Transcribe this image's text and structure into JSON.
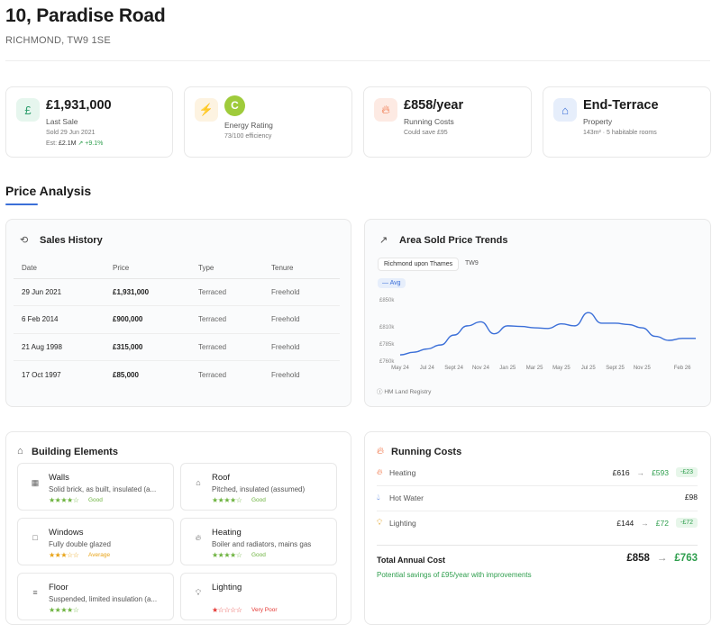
{
  "header": {
    "title": "10, Paradise Road",
    "subtitle": "RICHMOND, TW9 1SE"
  },
  "stats": [
    {
      "icon": "pound-icon",
      "value": "£1,931,000",
      "label": "Last Sale",
      "line1": "Sold 29 Jun 2021",
      "line2_prefix": "Est:",
      "line2_value": "£2.1M",
      "line2_change": "+9.1%"
    },
    {
      "icon": "lightning-icon",
      "badge": "C",
      "label": "Energy Rating",
      "line1": "73/100 efficiency"
    },
    {
      "icon": "flame-icon",
      "value": "£858/year",
      "label": "Running Costs",
      "line1": "Could save £95"
    },
    {
      "icon": "house-icon",
      "value": "End-Terrace",
      "label": "Property",
      "line1": "143m² · 5 habitable rooms"
    }
  ],
  "price_analysis": {
    "title": "Price Analysis"
  },
  "sales_history": {
    "title": "Sales History",
    "columns": [
      "Date",
      "Price",
      "Type",
      "Tenure"
    ],
    "rows": [
      [
        "29 Jun 2021",
        "£1,931,000",
        "Terraced",
        "Freehold"
      ],
      [
        "6 Feb 2014",
        "£900,000",
        "Terraced",
        "Freehold"
      ],
      [
        "21 Aug 1998",
        "£315,000",
        "Terraced",
        "Freehold"
      ],
      [
        "17 Oct 1997",
        "£85,000",
        "Terraced",
        "Freehold"
      ]
    ]
  },
  "trends": {
    "title": "Area Sold Price Trends",
    "tabs": [
      "Richmond upon Thames",
      "TW9"
    ],
    "active_tab": 0,
    "legend": "Avg",
    "source": "HM Land Registry",
    "accent": "#3b6fd8"
  },
  "chart_data": {
    "type": "line",
    "title": "",
    "xlabel": "",
    "ylabel": "",
    "x": [
      "May 24",
      "Jun 24",
      "Jul 24",
      "Aug 24",
      "Sep 24",
      "Oct 24",
      "Nov 24",
      "Dec 24",
      "Jan 25",
      "Feb 25",
      "Mar 25",
      "Apr 25",
      "May 25",
      "Jun 25",
      "Jul 25",
      "Aug 25",
      "Sep 25",
      "Oct 25",
      "Nov 25",
      "Dec 25",
      "Jan 26",
      "Feb 26",
      "Mar 26"
    ],
    "x_tick_labels": [
      "May 24",
      "Jul 24",
      "Sept 24",
      "Nov 24",
      "Jan 25",
      "Mar 25",
      "May 25",
      "Jul 25",
      "Sept 25",
      "Nov 25",
      "Feb 26"
    ],
    "y_tick_labels": [
      "£850k",
      "£810k",
      "£785k",
      "£760k"
    ],
    "series": [
      {
        "name": "Avg",
        "values": [
          768,
          772,
          777,
          783,
          798,
          812,
          818,
          800,
          812,
          811,
          809,
          808,
          815,
          812,
          832,
          816,
          816,
          814,
          809,
          796,
          790,
          793,
          793
        ]
      }
    ],
    "ylim": [
      760,
      850
    ]
  },
  "building": {
    "title": "Building Elements",
    "items": [
      {
        "icon": "walls-icon",
        "name": "Walls",
        "desc": "Solid brick, as built, insulated (a...",
        "stars": "★★★★☆",
        "rating": "Good",
        "rating_color": "#6db33f",
        "star_color": "#6db33f"
      },
      {
        "icon": "roof-icon",
        "name": "Roof",
        "desc": "Pitched, insulated (assumed)",
        "stars": "★★★★☆",
        "rating": "Good",
        "rating_color": "#6db33f",
        "star_color": "#6db33f"
      },
      {
        "icon": "window-icon",
        "name": "Windows",
        "desc": "Fully double glazed",
        "stars": "★★★☆☆",
        "rating": "Average",
        "rating_color": "#e8a317",
        "star_color": "#e8a317"
      },
      {
        "icon": "heating-icon",
        "name": "Heating",
        "desc": "Boiler and radiators, mains gas",
        "stars": "★★★★☆",
        "rating": "Good",
        "rating_color": "#6db33f",
        "star_color": "#6db33f"
      },
      {
        "icon": "floor-icon",
        "name": "Floor",
        "desc": "Suspended, limited insulation (a...",
        "stars": "★★★★☆",
        "rating": "",
        "rating_color": "#6db33f",
        "star_color": "#6db33f"
      },
      {
        "icon": "bulb-icon",
        "name": "Lighting",
        "desc": "",
        "stars": "★☆☆☆☆",
        "rating": "Very Poor",
        "rating_color": "#e53935",
        "star_color": "#e53935"
      }
    ]
  },
  "running_costs": {
    "title": "Running Costs",
    "rows": [
      {
        "icon": "flame-icon",
        "label": "Heating",
        "current": "£616",
        "arrow": "→",
        "potential": "£593",
        "save": "-£23"
      },
      {
        "icon": "water-drop-icon",
        "label": "Hot Water",
        "current": "£98"
      },
      {
        "icon": "bulb-icon",
        "label": "Lighting",
        "current": "£144",
        "arrow": "→",
        "potential": "£72",
        "save": "-£72"
      }
    ],
    "total_label": "Total Annual Cost",
    "total_current": "£858",
    "total_arrow": "→",
    "total_potential": "£763",
    "savings_note": "Potential savings of £95/year with improvements"
  }
}
